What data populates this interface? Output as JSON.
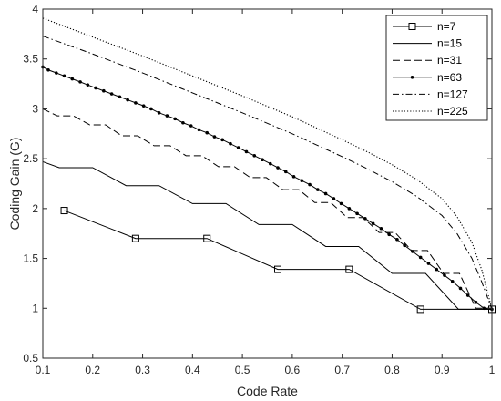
{
  "chart_data": {
    "type": "line",
    "title": "",
    "xlabel": "Code Rate",
    "ylabel": "Coding Gain (G)",
    "xlim": [
      0.1,
      1
    ],
    "ylim": [
      0.5,
      4
    ],
    "x_ticks": [
      "0.1",
      "0.2",
      "0.3",
      "0.4",
      "0.5",
      "0.6",
      "0.7",
      "0.8",
      "0.9",
      "1"
    ],
    "y_ticks": [
      "0.5",
      "1",
      "1.5",
      "2",
      "2.5",
      "3",
      "3.5",
      "4"
    ],
    "grid": false,
    "legend_position": "top-right",
    "series": [
      {
        "name": "n=7",
        "line_style": "solid",
        "marker": "square",
        "x": [
          0.143,
          0.286,
          0.429,
          0.571,
          0.714,
          0.857,
          1.0
        ],
        "y": [
          1.98,
          1.7,
          1.7,
          1.39,
          1.39,
          0.99,
          0.99
        ]
      },
      {
        "name": "n=15",
        "line_style": "solid",
        "marker": "none",
        "x": [
          0.1,
          0.133,
          0.2,
          0.267,
          0.333,
          0.4,
          0.467,
          0.533,
          0.6,
          0.667,
          0.733,
          0.8,
          0.867,
          0.933,
          1.0
        ],
        "y": [
          2.47,
          2.41,
          2.41,
          2.23,
          2.23,
          2.05,
          2.05,
          1.84,
          1.84,
          1.62,
          1.62,
          1.35,
          1.35,
          0.99,
          0.99
        ]
      },
      {
        "name": "n=31",
        "line_style": "dashed",
        "marker": "none",
        "x": [
          0.1,
          0.129,
          0.161,
          0.194,
          0.226,
          0.258,
          0.29,
          0.323,
          0.355,
          0.387,
          0.419,
          0.452,
          0.484,
          0.516,
          0.548,
          0.581,
          0.613,
          0.645,
          0.677,
          0.71,
          0.742,
          0.774,
          0.806,
          0.839,
          0.871,
          0.903,
          0.935,
          0.968,
          1.0
        ],
        "y": [
          3.0,
          2.93,
          2.93,
          2.84,
          2.84,
          2.73,
          2.73,
          2.63,
          2.63,
          2.53,
          2.53,
          2.42,
          2.42,
          2.31,
          2.31,
          2.19,
          2.19,
          2.06,
          2.06,
          1.91,
          1.91,
          1.76,
          1.76,
          1.58,
          1.58,
          1.35,
          1.35,
          1.0,
          1.0
        ]
      },
      {
        "name": "n=63",
        "line_style": "solid",
        "marker": "dot",
        "x": [
          0.1,
          0.111,
          0.127,
          0.143,
          0.159,
          0.175,
          0.19,
          0.206,
          0.222,
          0.238,
          0.254,
          0.27,
          0.286,
          0.302,
          0.317,
          0.333,
          0.349,
          0.365,
          0.381,
          0.397,
          0.413,
          0.429,
          0.444,
          0.46,
          0.476,
          0.492,
          0.508,
          0.524,
          0.54,
          0.556,
          0.571,
          0.587,
          0.603,
          0.619,
          0.635,
          0.651,
          0.667,
          0.683,
          0.698,
          0.714,
          0.73,
          0.746,
          0.762,
          0.778,
          0.794,
          0.81,
          0.825,
          0.841,
          0.857,
          0.873,
          0.889,
          0.905,
          0.921,
          0.937,
          0.952,
          0.968,
          0.984,
          1.0
        ],
        "y": [
          3.42,
          3.39,
          3.36,
          3.33,
          3.3,
          3.27,
          3.24,
          3.21,
          3.18,
          3.15,
          3.12,
          3.09,
          3.06,
          3.03,
          3.0,
          2.96,
          2.93,
          2.9,
          2.86,
          2.83,
          2.79,
          2.76,
          2.72,
          2.69,
          2.65,
          2.61,
          2.57,
          2.53,
          2.49,
          2.45,
          2.41,
          2.37,
          2.32,
          2.28,
          2.24,
          2.19,
          2.15,
          2.1,
          2.05,
          2.0,
          1.95,
          1.9,
          1.85,
          1.8,
          1.74,
          1.69,
          1.63,
          1.57,
          1.51,
          1.45,
          1.39,
          1.33,
          1.27,
          1.2,
          1.13,
          1.06,
          1.0,
          0.99
        ]
      },
      {
        "name": "n=127",
        "line_style": "dash-dot",
        "marker": "none",
        "x": [
          0.1,
          0.2,
          0.3,
          0.4,
          0.5,
          0.6,
          0.7,
          0.75,
          0.8,
          0.85,
          0.9,
          0.93,
          0.96,
          0.98,
          1.0
        ],
        "y": [
          3.73,
          3.55,
          3.36,
          3.16,
          2.96,
          2.75,
          2.52,
          2.4,
          2.27,
          2.12,
          1.93,
          1.75,
          1.5,
          1.26,
          0.99
        ]
      },
      {
        "name": "n=225",
        "line_style": "dotted",
        "marker": "none",
        "x": [
          0.1,
          0.2,
          0.3,
          0.4,
          0.5,
          0.6,
          0.7,
          0.75,
          0.8,
          0.85,
          0.9,
          0.93,
          0.96,
          0.98,
          1.0
        ],
        "y": [
          3.91,
          3.72,
          3.53,
          3.33,
          3.13,
          2.92,
          2.69,
          2.57,
          2.44,
          2.29,
          2.1,
          1.92,
          1.66,
          1.38,
          0.99
        ]
      }
    ]
  }
}
